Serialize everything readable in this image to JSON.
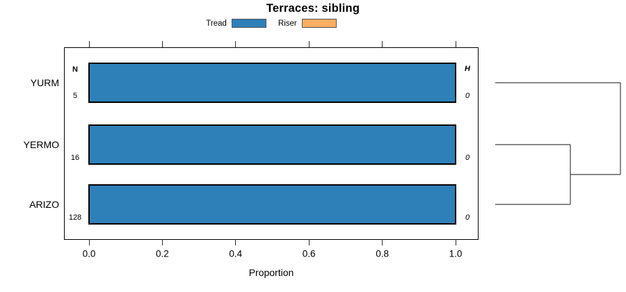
{
  "figure": {
    "title": "Terraces: sibling",
    "x_axis_label": "Proportion"
  },
  "legend": {
    "items": [
      {
        "label": "Tread",
        "color": "#2E80B9",
        "border": "#555555"
      },
      {
        "label": "Riser",
        "color": "#FDAE61",
        "border": "#555555"
      }
    ],
    "position": "top"
  },
  "chart_data": {
    "type": "bar",
    "orientation": "horizontal",
    "stacked": true,
    "title": "Terraces: sibling",
    "xlabel": "Proportion",
    "xlim": [
      0.0,
      1.06
    ],
    "xticks": [
      0.0,
      0.2,
      0.4,
      0.6,
      0.8,
      1.0
    ],
    "xtick_labels": [
      "0.0",
      "0.2",
      "0.4",
      "0.6",
      "0.8",
      "1.0"
    ],
    "grid": false,
    "categories": [
      "YURM",
      "YERMO",
      "ARIZO"
    ],
    "series": [
      {
        "name": "Tread",
        "color": "#2E80B9",
        "values": [
          1.0,
          1.0,
          1.0
        ]
      },
      {
        "name": "Riser",
        "color": "#FDAE61",
        "values": [
          0.0,
          0.0,
          0.0
        ]
      }
    ],
    "annotations": {
      "n_header": "N",
      "n_values": [
        "5",
        "16",
        "128"
      ],
      "h_header": "H",
      "h_values": [
        "0",
        "0",
        "0"
      ]
    },
    "legend_position": "top",
    "dendrogram": {
      "attached": "right",
      "leaf_order": [
        "YURM",
        "YERMO",
        "ARIZO"
      ],
      "merges": [
        {
          "children": [
            1,
            2
          ],
          "span_frac": 0.6
        },
        {
          "children": [
            0,
            "m0"
          ],
          "span_frac": 1.0
        }
      ],
      "line_color": "#404040"
    }
  }
}
